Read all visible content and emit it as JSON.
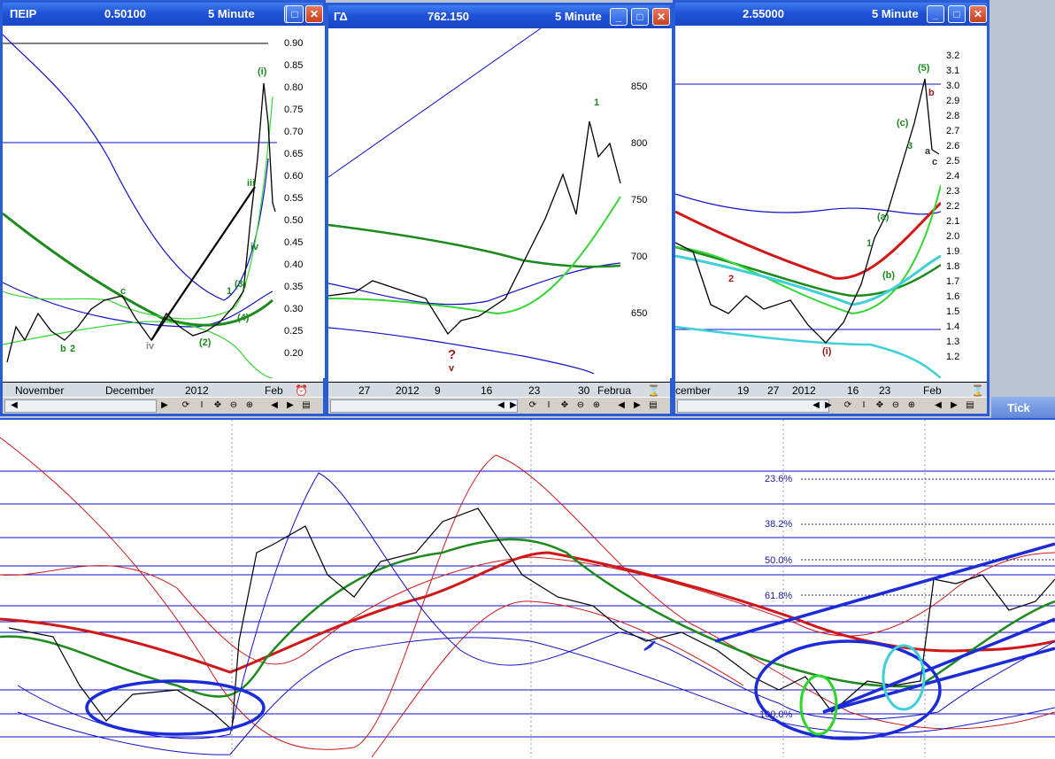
{
  "windows": [
    {
      "title": "ΠΕΙΡ",
      "price": "0.50100",
      "interval": "5 Minute",
      "y_ticks": [
        "0.90",
        "0.85",
        "0.80",
        "0.75",
        "0.70",
        "0.65",
        "0.60",
        "0.55",
        "0.50",
        "0.45",
        "0.40",
        "0.35",
        "0.30",
        "0.25",
        "0.20"
      ],
      "x_labels": [
        "November",
        "December",
        "2012",
        "Feb"
      ],
      "wave_labels": [
        "(i)",
        "iii",
        "iv",
        "(4)",
        "(3)",
        "(2)",
        "iv",
        "b",
        "c",
        "2",
        "1"
      ]
    },
    {
      "title": "ΓΔ",
      "price": "762.150",
      "interval": "5 Minute",
      "y_ticks": [
        "850",
        "800",
        "750",
        "700",
        "650"
      ],
      "x_labels": [
        "27",
        "2012",
        "9",
        "16",
        "23",
        "30",
        "Februa"
      ],
      "wave_labels": [
        "1",
        "?",
        "v"
      ]
    },
    {
      "title": "",
      "price": "2.55000",
      "interval": "5 Minute",
      "y_ticks": [
        "3.2",
        "3.1",
        "3.0",
        "2.9",
        "2.8",
        "2.7",
        "2.6",
        "2.5",
        "2.4",
        "2.3",
        "2.2",
        "2.1",
        "2.0",
        "1.9",
        "1.8",
        "1.7",
        "1.6",
        "1.5",
        "1.4",
        "1.3",
        "1.2"
      ],
      "x_labels": [
        "cember",
        "19",
        "27",
        "2012",
        "16",
        "23",
        "Feb"
      ],
      "wave_labels": [
        "(5)",
        "(c)",
        "(a)",
        "(b)",
        "(i)",
        "3",
        "1",
        "2",
        "a",
        "b",
        "c"
      ]
    }
  ],
  "tick_window": {
    "title": "Tick",
    "fib_levels": [
      "23.6%",
      "38.2%",
      "50.0%",
      "61.8%",
      "100.0%"
    ]
  },
  "toolbar_icons": [
    "scroll-left",
    "scroll-right",
    "cycle",
    "info",
    "move",
    "zoom-out",
    "zoom-in",
    "prev",
    "next",
    "menu"
  ],
  "colors": {
    "title_bar": "#1f52d8",
    "blue_line": "#1010c8",
    "red_line": "#d01818",
    "green_line": "#1c8a1c",
    "light_green": "#33d633",
    "cyan": "#3dd0d8"
  }
}
